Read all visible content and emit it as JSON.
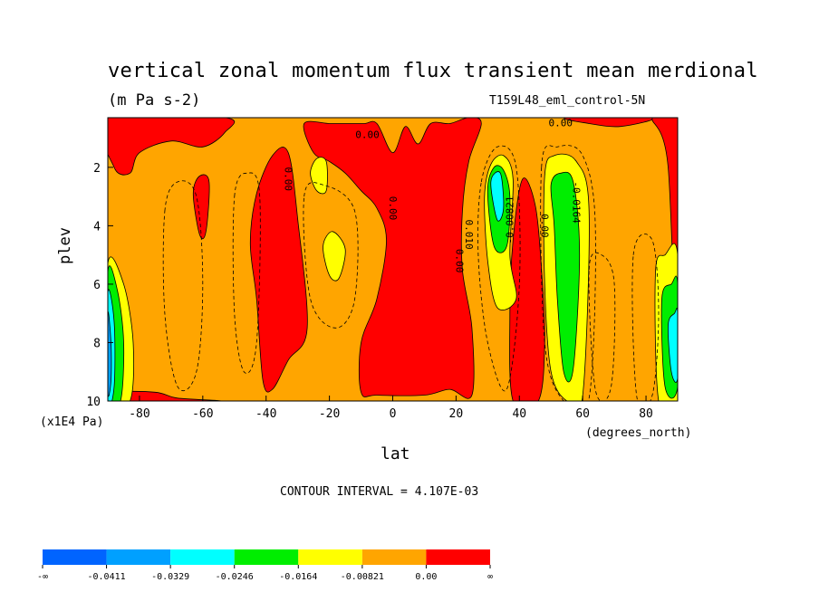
{
  "chart_data": {
    "type": "heatmap",
    "title": "vertical zonal momentum flux transient mean merdional",
    "units": "(m Pa s-2)",
    "run_label": "T159L48_eml_control-5N",
    "xlabel": "lat",
    "x_units": "(degrees_north)",
    "ylabel": "plev",
    "y_units": "(x1E4 Pa)",
    "contour_interval_text": "CONTOUR INTERVAL = 4.107E-03",
    "xlim": [
      -90,
      90
    ],
    "ylim": [
      10,
      0.3
    ],
    "x_ticks": [
      "-80",
      "-60",
      "-40",
      "-20",
      "0",
      "20",
      "40",
      "60",
      "80"
    ],
    "x_tick_values": [
      -80,
      -60,
      -40,
      -20,
      0,
      20,
      40,
      60,
      80
    ],
    "y_ticks": [
      "2",
      "4",
      "6",
      "8",
      "10"
    ],
    "y_tick_values": [
      2,
      4,
      6,
      8,
      10
    ],
    "background_level_color": "#ffa500",
    "fields": [
      {
        "name": "red upper-left",
        "color": "#ff0000",
        "pts": [
          [
            -90,
            0.3
          ],
          [
            -88,
            2
          ],
          [
            -83,
            2.2
          ],
          [
            -80,
            1.5
          ],
          [
            -70,
            1.1
          ],
          [
            -60,
            1.3
          ],
          [
            -53,
            0.8
          ],
          [
            -53,
            0.3
          ]
        ]
      },
      {
        "name": "red midlat south",
        "color": "#ff0000",
        "pts": [
          [
            -43,
            2.9
          ],
          [
            -38,
            1.6
          ],
          [
            -33,
            1.5
          ],
          [
            -30,
            3.8
          ],
          [
            -27,
            7.5
          ],
          [
            -33,
            8.6
          ],
          [
            -38,
            9.6
          ],
          [
            -41,
            9.3
          ],
          [
            -43,
            6.5
          ],
          [
            -45,
            4.6
          ]
        ]
      },
      {
        "name": "red blob -58",
        "color": "#ff0000",
        "pts": [
          [
            -63,
            2.9
          ],
          [
            -61,
            2.3
          ],
          [
            -58,
            2.5
          ],
          [
            -59,
            4.2
          ],
          [
            -61,
            4.3
          ]
        ]
      },
      {
        "name": "red tropics",
        "color": "#ff0000",
        "pts": [
          [
            -28,
            0.5
          ],
          [
            -20,
            0.5
          ],
          [
            -15,
            0.5
          ],
          [
            -9,
            0.5
          ],
          [
            -5,
            0.5
          ],
          [
            0,
            1.5
          ],
          [
            4,
            0.6
          ],
          [
            8,
            1.2
          ],
          [
            12,
            0.5
          ],
          [
            18,
            0.5
          ],
          [
            24,
            0.3
          ],
          [
            28,
            0.5
          ],
          [
            24,
            1.8
          ],
          [
            22,
            3.5
          ],
          [
            22,
            5.5
          ],
          [
            25,
            7.5
          ],
          [
            25,
            9.8
          ],
          [
            18,
            9.6
          ],
          [
            10,
            9.8
          ],
          [
            -5,
            9.8
          ],
          [
            -10,
            9.7
          ],
          [
            -10,
            8
          ],
          [
            -5,
            6.5
          ],
          [
            -2,
            4.5
          ],
          [
            -5,
            3.4
          ],
          [
            -10,
            2.8
          ],
          [
            -15,
            2.2
          ],
          [
            -20,
            1.8
          ],
          [
            -25,
            1.5
          ]
        ]
      },
      {
        "name": "red column 40N",
        "color": "#ff0000",
        "pts": [
          [
            41,
            2.4
          ],
          [
            45,
            3.3
          ],
          [
            47,
            5.5
          ],
          [
            48,
            8
          ],
          [
            46,
            10
          ],
          [
            38,
            10
          ],
          [
            37,
            7
          ],
          [
            38,
            4.5
          ]
        ]
      },
      {
        "name": "red north cap",
        "color": "#ff0000",
        "pts": [
          [
            55,
            0.3
          ],
          [
            62,
            0.5
          ],
          [
            72,
            0.6
          ],
          [
            82,
            0.3
          ]
        ]
      },
      {
        "name": "red north pole",
        "color": "#ff0000",
        "pts": [
          [
            82,
            0.3
          ],
          [
            90,
            0.3
          ],
          [
            90,
            9.8
          ],
          [
            87,
            2
          ]
        ]
      },
      {
        "name": "red bottom left",
        "color": "#ff0000",
        "pts": [
          [
            -88,
            9.7
          ],
          [
            -75,
            9.7
          ],
          [
            -68,
            9.9
          ],
          [
            -55,
            10
          ],
          [
            -88,
            10
          ]
        ]
      },
      {
        "name": "yellow south pole",
        "color": "#ffff00",
        "pts": [
          [
            -90,
            5.3
          ],
          [
            -85,
            6
          ],
          [
            -82,
            8
          ],
          [
            -83,
            10
          ],
          [
            -90,
            10
          ]
        ]
      },
      {
        "name": "green south pole",
        "color": "#00ee00",
        "pts": [
          [
            -90,
            5.6
          ],
          [
            -87,
            6.2
          ],
          [
            -85,
            8
          ],
          [
            -86,
            10
          ],
          [
            -90,
            10
          ]
        ]
      },
      {
        "name": "cyan south pole",
        "color": "#00ffff",
        "pts": [
          [
            -90,
            6.3
          ],
          [
            -88,
            7.3
          ],
          [
            -88,
            9.5
          ],
          [
            -90,
            10
          ]
        ]
      },
      {
        "name": "blue south pole",
        "color": "#00a0ff",
        "pts": [
          [
            -90,
            7
          ],
          [
            -89,
            8
          ],
          [
            -89,
            9.3
          ],
          [
            -90,
            9.7
          ]
        ]
      },
      {
        "name": "yellow -25 upper",
        "color": "#ffff00",
        "pts": [
          [
            -26,
            2.2
          ],
          [
            -24,
            1.7
          ],
          [
            -21,
            1.8
          ],
          [
            -21,
            2.8
          ],
          [
            -24,
            2.8
          ]
        ]
      },
      {
        "name": "yellow -18",
        "color": "#ffff00",
        "pts": [
          [
            -22,
            4.7
          ],
          [
            -19,
            4.2
          ],
          [
            -15,
            4.8
          ],
          [
            -17,
            5.8
          ],
          [
            -20,
            5.7
          ]
        ]
      },
      {
        "name": "yellow 30N jet",
        "color": "#ffff00",
        "pts": [
          [
            29,
            3
          ],
          [
            31,
            1.9
          ],
          [
            35,
            1.6
          ],
          [
            38,
            2.4
          ],
          [
            37,
            5
          ],
          [
            39,
            6.5
          ],
          [
            33,
            6.8
          ],
          [
            30,
            5.2
          ]
        ]
      },
      {
        "name": "green 30N jet",
        "color": "#00ee00",
        "pts": [
          [
            30,
            2.8
          ],
          [
            32,
            2
          ],
          [
            35,
            2.1
          ],
          [
            37,
            3
          ],
          [
            36,
            4.7
          ],
          [
            32,
            4.7
          ]
        ]
      },
      {
        "name": "cyan 30N",
        "color": "#00ffff",
        "pts": [
          [
            31,
            2.5
          ],
          [
            34,
            2.2
          ],
          [
            35,
            3.4
          ],
          [
            33,
            3.8
          ]
        ]
      },
      {
        "name": "yellow 55N",
        "color": "#ffff00",
        "pts": [
          [
            48,
            2.3
          ],
          [
            51,
            1.6
          ],
          [
            58,
            1.8
          ],
          [
            62,
            3.5
          ],
          [
            60,
            9.8
          ],
          [
            55,
            10
          ],
          [
            50,
            9
          ],
          [
            48,
            6
          ]
        ]
      },
      {
        "name": "green 55N",
        "color": "#00ee00",
        "pts": [
          [
            50,
            2.6
          ],
          [
            53,
            2.2
          ],
          [
            57,
            2.5
          ],
          [
            59,
            5
          ],
          [
            57,
            8.9
          ],
          [
            54,
            9
          ],
          [
            52,
            6.5
          ],
          [
            51,
            4
          ]
        ]
      },
      {
        "name": "yellow north pole",
        "color": "#ffff00",
        "pts": [
          [
            83,
            5.6
          ],
          [
            86,
            5
          ],
          [
            90,
            5
          ],
          [
            90,
            10
          ],
          [
            84,
            10
          ]
        ]
      },
      {
        "name": "green north pole",
        "color": "#00ee00",
        "pts": [
          [
            85,
            6.5
          ],
          [
            88,
            6
          ],
          [
            90,
            6
          ],
          [
            90,
            9.5
          ],
          [
            86,
            9.5
          ]
        ]
      },
      {
        "name": "cyan north pole",
        "color": "#00ffff",
        "pts": [
          [
            87,
            7.4
          ],
          [
            89,
            7
          ],
          [
            90,
            7
          ],
          [
            90,
            9.2
          ],
          [
            88,
            9
          ]
        ]
      }
    ],
    "contour_labels": [
      {
        "text": "0.00",
        "lat": -8,
        "plev": 1.0,
        "rot": 0
      },
      {
        "text": "0.00",
        "lat": 53,
        "plev": 0.6,
        "rot": 0
      },
      {
        "text": "0.00",
        "lat": -34,
        "plev": 2.4,
        "rot": 90
      },
      {
        "text": "0.00",
        "lat": -1,
        "plev": 3.4,
        "rot": 90
      },
      {
        "text": "0.00",
        "lat": 20,
        "plev": 5.2,
        "rot": 90
      },
      {
        "text": "0.010",
        "lat": 23,
        "plev": 4.3,
        "rot": 90
      },
      {
        "text": "-0.00821",
        "lat": 38,
        "plev": 3.8,
        "rot": -90
      },
      {
        "text": "0.00",
        "lat": 47,
        "plev": 4.0,
        "rot": 90
      },
      {
        "text": "-0.0164",
        "lat": 57,
        "plev": 3.2,
        "rot": 90
      }
    ],
    "colorbar": {
      "colors": [
        "#0064ff",
        "#00a0ff",
        "#00ffff",
        "#00ee00",
        "#ffff00",
        "#ffa500",
        "#ff0000"
      ],
      "labels": [
        "-∞",
        "-0.0411",
        "-0.0329",
        "-0.0246",
        "-0.0164",
        "-0.00821",
        "0.00",
        "∞"
      ],
      "levels": [
        -0.0411,
        -0.0329,
        -0.0246,
        -0.0164,
        -0.00821,
        0.0
      ]
    }
  }
}
